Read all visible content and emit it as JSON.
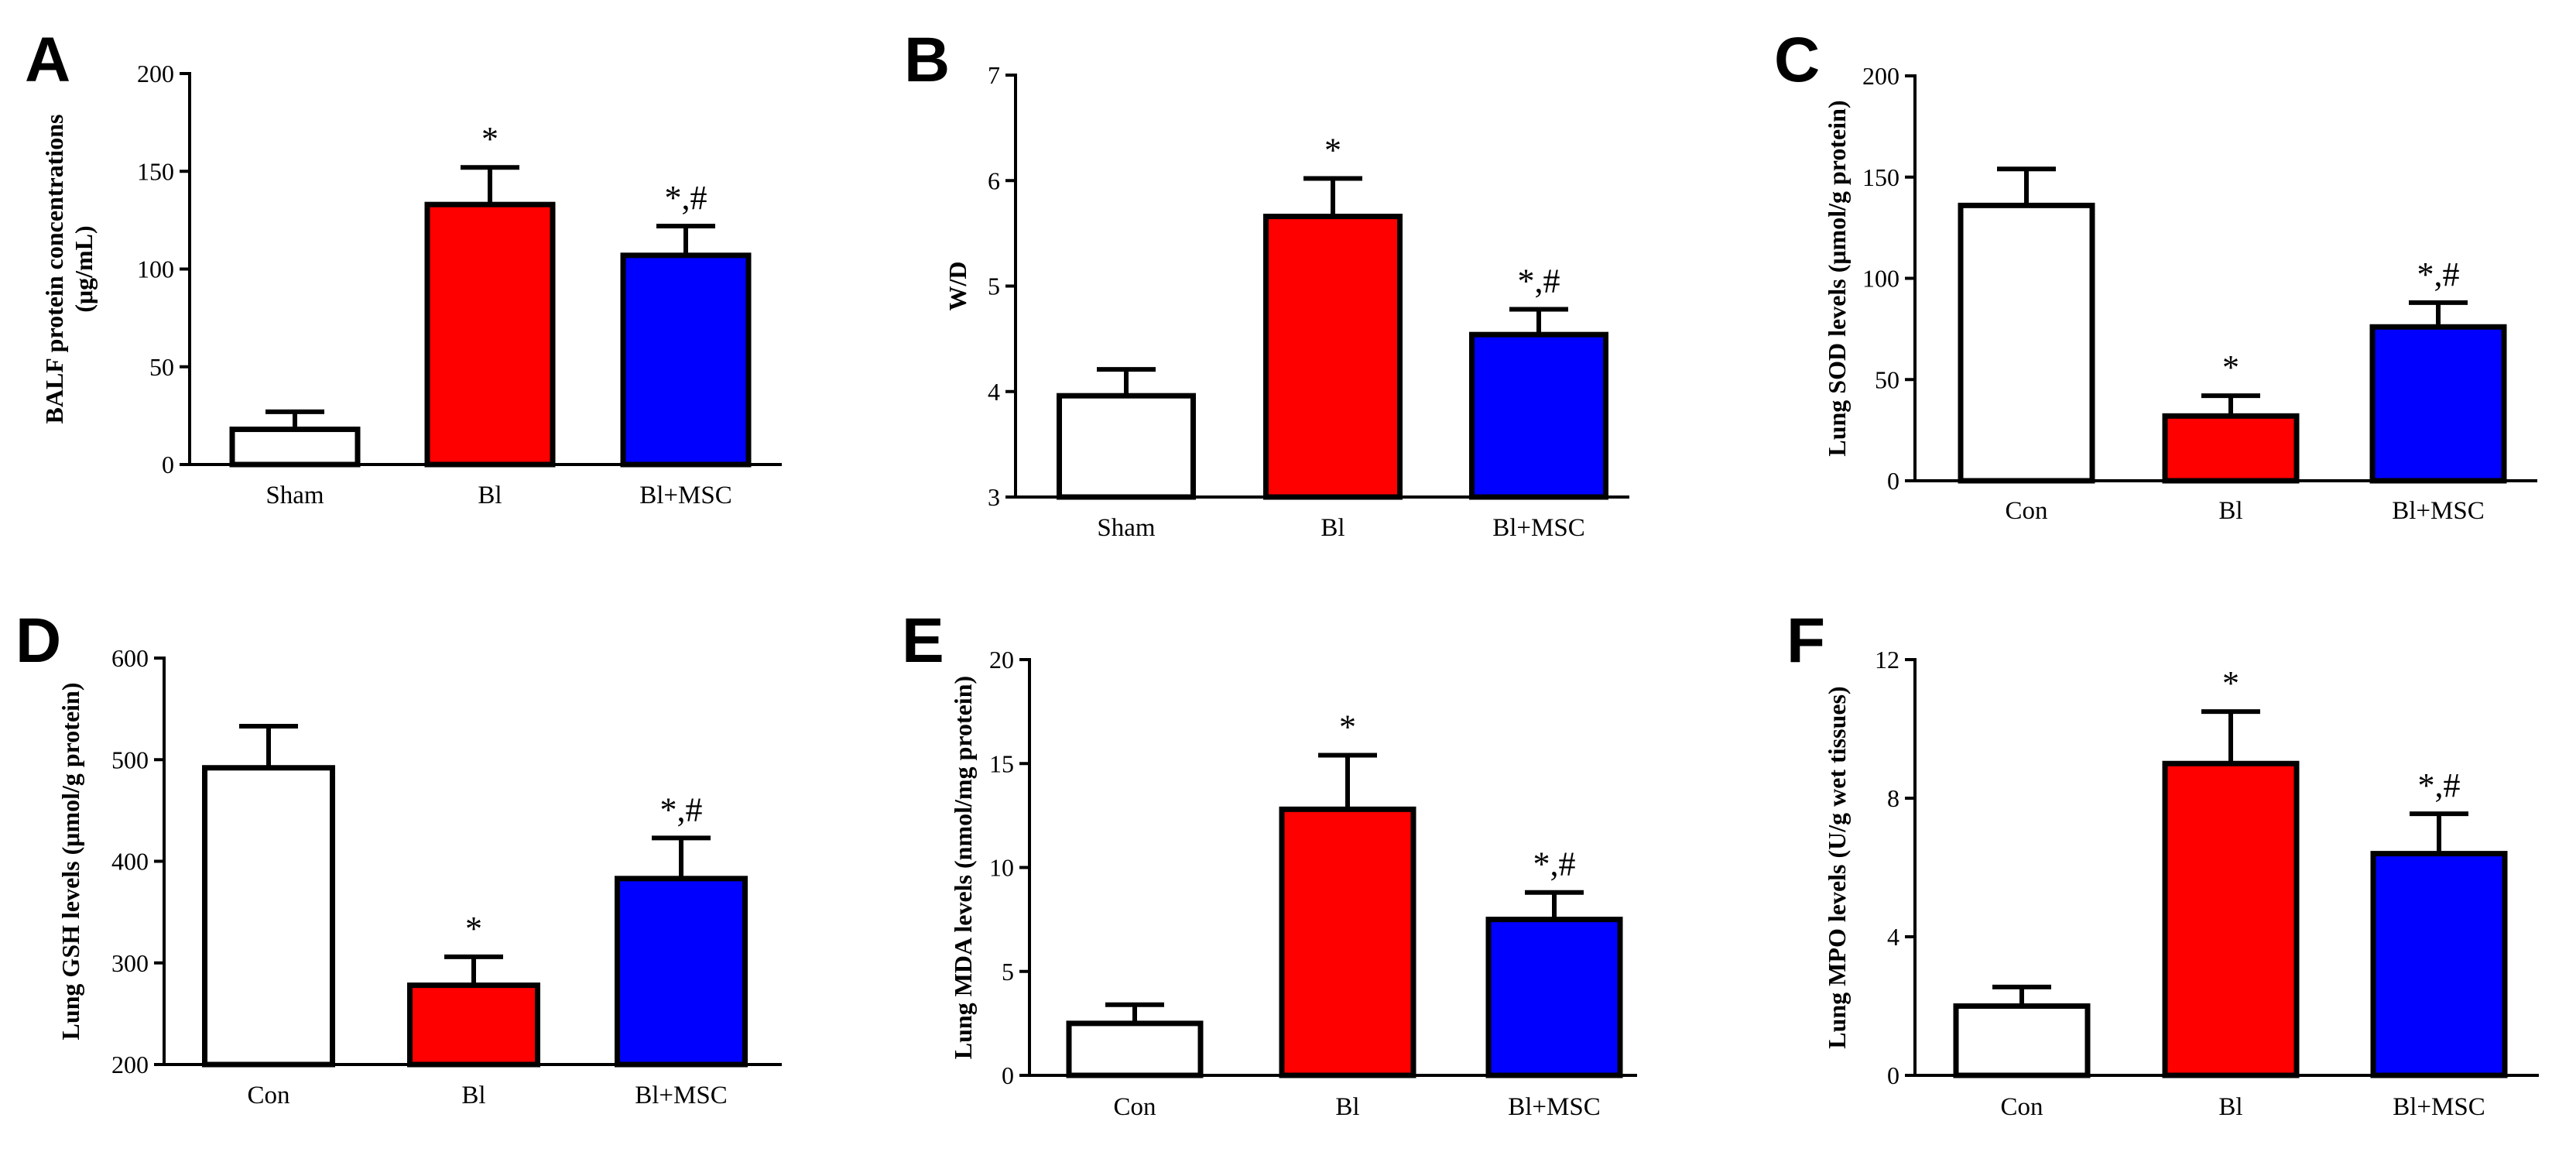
{
  "chart_data": [
    {
      "letter": "A",
      "type": "bar",
      "ylabel_lines": [
        "BALF protein concentrations",
        "(μg/mL)"
      ],
      "ylim": [
        0,
        200
      ],
      "yticks": [
        0,
        50,
        100,
        150,
        200
      ],
      "categories": [
        "Sham",
        "Bl",
        "Bl+MSC"
      ],
      "values": [
        18,
        133,
        107
      ],
      "errors": [
        9,
        19,
        15
      ],
      "colors": [
        "#ffffff",
        "#ff0000",
        "#0000ff"
      ],
      "sig": [
        "",
        "*",
        "*,#"
      ]
    },
    {
      "letter": "B",
      "type": "bar",
      "ylabel_lines": [
        "W/D"
      ],
      "ylim": [
        3,
        7
      ],
      "yticks": [
        3,
        4,
        5,
        6,
        7
      ],
      "categories": [
        "Sham",
        "Bl",
        "Bl+MSC"
      ],
      "values": [
        3.96,
        5.66,
        4.54
      ],
      "errors": [
        0.25,
        0.36,
        0.24
      ],
      "colors": [
        "#ffffff",
        "#ff0000",
        "#0000ff"
      ],
      "sig": [
        "",
        "*",
        "*,#"
      ]
    },
    {
      "letter": "C",
      "type": "bar",
      "ylabel_lines": [
        "Lung SOD levels (μmol/g protein)"
      ],
      "ylim": [
        0,
        200
      ],
      "yticks": [
        0,
        50,
        100,
        150,
        200
      ],
      "categories": [
        "Con",
        "Bl",
        "Bl+MSC"
      ],
      "values": [
        136,
        32,
        76
      ],
      "errors": [
        18,
        10,
        12
      ],
      "colors": [
        "#ffffff",
        "#ff0000",
        "#0000ff"
      ],
      "sig": [
        "",
        "*",
        "*,#"
      ]
    },
    {
      "letter": "D",
      "type": "bar",
      "ylabel_lines": [
        "Lung GSH levels (μmol/g protein)"
      ],
      "ylim": [
        200,
        600
      ],
      "yticks": [
        200,
        300,
        400,
        500,
        600
      ],
      "categories": [
        "Con",
        "Bl",
        "Bl+MSC"
      ],
      "values": [
        492,
        278,
        383
      ],
      "errors": [
        41,
        28,
        40
      ],
      "colors": [
        "#ffffff",
        "#ff0000",
        "#0000ff"
      ],
      "sig": [
        "",
        "*",
        "*,#"
      ]
    },
    {
      "letter": "E",
      "type": "bar",
      "ylabel_lines": [
        "Lung MDA levels (nmol/mg protein)"
      ],
      "ylim": [
        0,
        20
      ],
      "yticks": [
        0,
        5,
        10,
        15,
        20
      ],
      "categories": [
        "Con",
        "Bl",
        "Bl+MSC"
      ],
      "values": [
        2.5,
        12.8,
        7.5
      ],
      "errors": [
        0.9,
        2.6,
        1.3
      ],
      "colors": [
        "#ffffff",
        "#ff0000",
        "#0000ff"
      ],
      "sig": [
        "",
        "*",
        "*,#"
      ]
    },
    {
      "letter": "F",
      "type": "bar",
      "ylabel_lines": [
        "Lung MPO levels (U/g wet tissues)"
      ],
      "ylim": [
        0,
        12
      ],
      "yticks": [
        0,
        4,
        8,
        12
      ],
      "categories": [
        "Con",
        "Bl",
        "Bl+MSC"
      ],
      "values": [
        2.0,
        9.0,
        6.4
      ],
      "errors": [
        0.55,
        1.5,
        1.15
      ],
      "colors": [
        "#ffffff",
        "#ff0000",
        "#0000ff"
      ],
      "sig": [
        "",
        "*",
        "*,#"
      ]
    }
  ]
}
